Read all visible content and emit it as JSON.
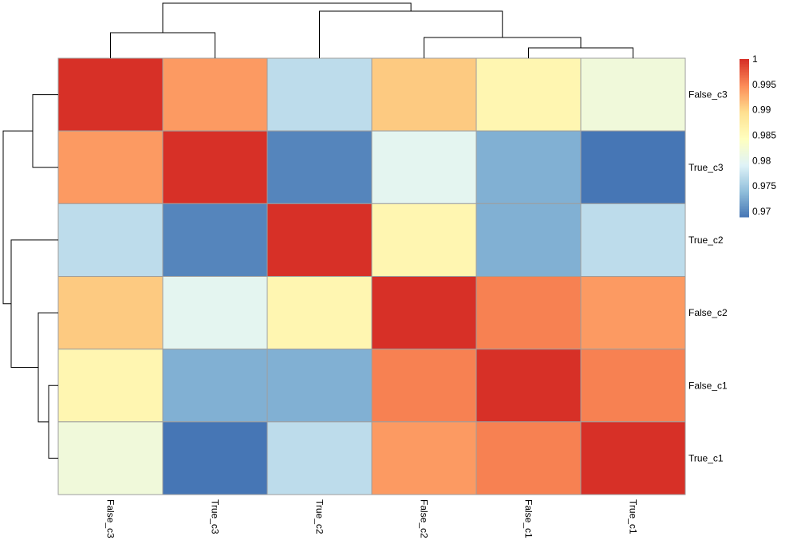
{
  "chart_data": {
    "type": "heatmap",
    "title": "",
    "rows": [
      "False_c3",
      "True_c3",
      "True_c2",
      "False_c2",
      "False_c1",
      "True_c1"
    ],
    "columns": [
      "False_c3",
      "True_c3",
      "True_c2",
      "False_c2",
      "False_c1",
      "True_c1"
    ],
    "values": [
      [
        1.0,
        0.994,
        0.977,
        0.991,
        0.986,
        0.982
      ],
      [
        0.994,
        1.0,
        0.97,
        0.98,
        0.973,
        0.969
      ],
      [
        0.977,
        0.97,
        1.0,
        0.986,
        0.973,
        0.977
      ],
      [
        0.991,
        0.98,
        0.986,
        1.0,
        0.9955,
        0.994
      ],
      [
        0.986,
        0.973,
        0.973,
        0.9955,
        1.0,
        0.9955
      ],
      [
        0.982,
        0.969,
        0.977,
        0.994,
        0.9955,
        1.0
      ]
    ],
    "color_range": [
      0.9689,
      1.0
    ],
    "palette": [
      "#4575B4",
      "#91BFDB",
      "#E0F3F8",
      "#FFFFBF",
      "#FEE090",
      "#FC8D59",
      "#D73027"
    ],
    "legend": {
      "placement": "right",
      "ticks": [
        "0.97",
        "0.975",
        "0.98",
        "0.985",
        "0.99",
        "0.995",
        "1"
      ]
    },
    "row_dendrogram": true,
    "column_dendrogram": true,
    "cell_border_color": "#9E9E9E"
  }
}
